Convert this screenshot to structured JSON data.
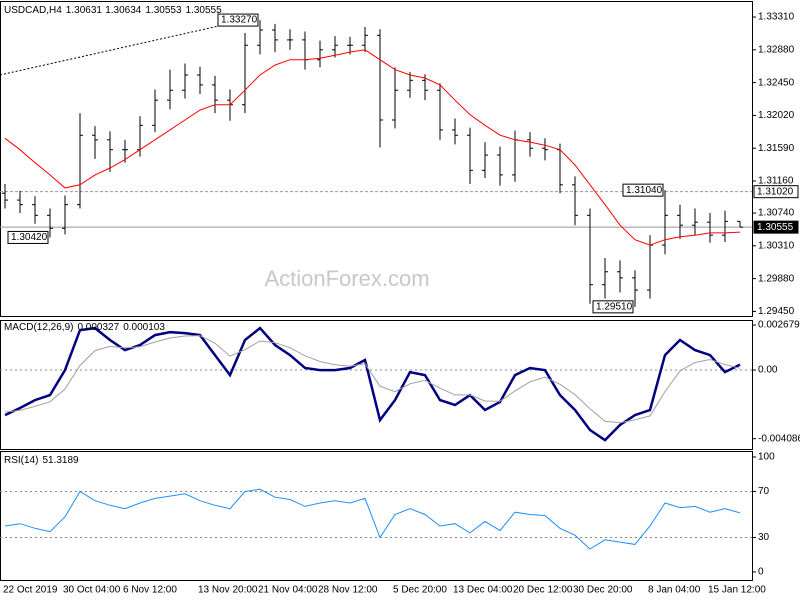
{
  "chart_data": [
    {
      "type": "ohlc",
      "title": "USDCAD,H4",
      "color": "#000000",
      "categories": [
        "22 Oct 2019",
        null,
        null,
        null,
        "30 Oct 04:00",
        null,
        null,
        null,
        "6 Nov 12:00",
        null,
        null,
        null,
        null,
        "13 Nov 20:00",
        null,
        null,
        null,
        "21 Nov 04:00",
        null,
        null,
        null,
        "28 Nov 12:00",
        null,
        null,
        null,
        null,
        "5 Dec 20:00",
        null,
        null,
        null,
        "13 Dec 04:00",
        null,
        null,
        null,
        "20 Dec 12:00",
        null,
        null,
        null,
        "30 Dec 20:00",
        null,
        null,
        null,
        null,
        "8 Jan 04:00",
        null,
        null,
        null,
        "15 Jan 12:00",
        null,
        null
      ],
      "open": [
        1.31,
        1.3091,
        1.3085,
        1.3071,
        1.3054,
        1.3085,
        1.3176,
        1.317,
        1.3157,
        1.3157,
        1.3189,
        1.3222,
        1.3235,
        1.3255,
        1.3242,
        1.3222,
        1.3216,
        1.3294,
        1.3314,
        1.3301,
        1.3301,
        1.3275,
        1.3288,
        1.3294,
        1.3294,
        1.3307,
        1.3196,
        1.3235,
        1.3248,
        1.3235,
        1.3183,
        1.3176,
        1.313,
        1.315,
        1.3124,
        1.317,
        1.3159,
        1.3157,
        1.3111,
        1.3071,
        1.298,
        1.2997,
        1.2989,
        1.2973,
        1.3032,
        1.3071,
        1.3058,
        1.3062,
        1.3045,
        1.30631
      ],
      "high": [
        1.3112,
        1.3103,
        1.3096,
        1.308,
        1.3097,
        1.3205,
        1.3188,
        1.3181,
        1.317,
        1.3201,
        1.3236,
        1.3262,
        1.327,
        1.3266,
        1.3254,
        1.3236,
        1.331,
        1.3327,
        1.3322,
        1.3315,
        1.3312,
        1.33,
        1.3306,
        1.3305,
        1.3318,
        1.3315,
        1.3265,
        1.3259,
        1.3256,
        1.3244,
        1.3198,
        1.3186,
        1.3167,
        1.3161,
        1.3182,
        1.318,
        1.3172,
        1.3165,
        1.3122,
        1.308,
        1.3015,
        1.3012,
        1.2999,
        1.3045,
        1.3104,
        1.3085,
        1.308,
        1.3074,
        1.3077,
        1.30634
      ],
      "low": [
        1.308,
        1.3074,
        1.306,
        1.3042,
        1.3046,
        1.308,
        1.3145,
        1.3128,
        1.314,
        1.3148,
        1.318,
        1.321,
        1.3224,
        1.323,
        1.3205,
        1.3195,
        1.3205,
        1.3282,
        1.3285,
        1.3288,
        1.3262,
        1.3265,
        1.3278,
        1.3282,
        1.3285,
        1.316,
        1.3185,
        1.3225,
        1.3222,
        1.317,
        1.3164,
        1.3112,
        1.312,
        1.311,
        1.3115,
        1.3148,
        1.3143,
        1.31,
        1.3058,
        1.2955,
        1.2962,
        1.297,
        1.2951,
        1.2962,
        1.302,
        1.304,
        1.3045,
        1.3035,
        1.3036,
        1.30553
      ],
      "close": [
        1.3091,
        1.3085,
        1.3071,
        1.3054,
        1.3085,
        1.3176,
        1.317,
        1.3157,
        1.3157,
        1.3189,
        1.3222,
        1.3235,
        1.3255,
        1.3242,
        1.3222,
        1.3216,
        1.3294,
        1.3314,
        1.3301,
        1.3301,
        1.3275,
        1.3288,
        1.3294,
        1.3294,
        1.3307,
        1.3196,
        1.3235,
        1.3248,
        1.3235,
        1.3183,
        1.3176,
        1.313,
        1.315,
        1.3124,
        1.317,
        1.3159,
        1.3157,
        1.3111,
        1.3071,
        1.298,
        1.2997,
        1.2989,
        1.2973,
        1.3032,
        1.3071,
        1.3058,
        1.3062,
        1.3045,
        1.30631,
        1.30555
      ],
      "ma_color": "#ff0000",
      "ma_values": [
        1.3172,
        1.3157,
        1.314,
        1.3124,
        1.3107,
        1.3111,
        1.3124,
        1.3133,
        1.3144,
        1.3157,
        1.317,
        1.3183,
        1.3196,
        1.3209,
        1.3216,
        1.3216,
        1.3235,
        1.3255,
        1.3268,
        1.3275,
        1.3275,
        1.3277,
        1.3281,
        1.3285,
        1.3288,
        1.3275,
        1.3262,
        1.3255,
        1.3251,
        1.3242,
        1.3222,
        1.3203,
        1.3189,
        1.3176,
        1.317,
        1.3167,
        1.3163,
        1.3157,
        1.3137,
        1.3111,
        1.3085,
        1.3058,
        1.3039,
        1.3032,
        1.3039,
        1.3043,
        1.3045,
        1.3048,
        1.3048,
        1.3049
      ],
      "ylim": [
        1.2939,
        1.3352
      ],
      "yticks": [
        {
          "value": 1.3331,
          "label": "1.33310"
        },
        {
          "value": 1.3288,
          "label": "1.32880"
        },
        {
          "value": 1.3245,
          "label": "1.32450"
        },
        {
          "value": 1.3202,
          "label": "1.32020"
        },
        {
          "value": 1.3159,
          "label": "1.31590"
        },
        {
          "value": 1.3116,
          "label": "1.31160"
        },
        {
          "value": 1.3074,
          "label": "1.30740"
        },
        {
          "value": 1.3031,
          "label": "1.30310"
        },
        {
          "value": 1.2988,
          "label": "1.29880"
        },
        {
          "value": 1.2945,
          "label": "1.29450"
        }
      ],
      "hlines": [
        {
          "value": 1.3102,
          "label": "1.31020"
        },
        {
          "value": 1.30555,
          "label": "1.30555"
        }
      ],
      "annotations": [
        {
          "value": 1.3327,
          "label": "1.33270"
        },
        {
          "value": 1.3042,
          "label": "1.30420"
        },
        {
          "value": 1.2951,
          "label": "1.29510"
        },
        {
          "value": 1.3104,
          "label": "1.31040"
        }
      ],
      "trendline": [
        1.3255,
        1.3327
      ],
      "watermark": "ActionForex.com"
    },
    {
      "type": "line",
      "title": "MACD(12,26,9)",
      "series": [
        {
          "color": "#000080",
          "values": [
            -0.00268,
            -0.00226,
            -0.00179,
            -0.00149,
            0,
            0.00238,
            0.0025,
            0.00179,
            0.00119,
            0.00149,
            0.00208,
            0.00226,
            0.0022,
            0.00208,
            0.00089,
            -0.0003,
            0.00179,
            0.0025,
            0.00149,
            0.00089,
            0.00012,
            0,
            0,
            0.00012,
            0.0006,
            -0.00298,
            -0.00179,
            -0.00012,
            -0.0003,
            -0.00179,
            -0.00208,
            -0.00149,
            -0.00238,
            -0.0019,
            -0.0003,
            0.00012,
            0,
            -0.00149,
            -0.00238,
            -0.00357,
            -0.00417,
            -0.00327,
            -0.00268,
            -0.00238,
            0.00089,
            0.00179,
            0.00119,
            0.00089,
            -0.00012,
            0.000327
          ]
        },
        {
          "color": "#a0a0a0",
          "values": [
            -0.0025,
            -0.0024,
            -0.00216,
            -0.00189,
            -0.00113,
            0.00027,
            0.00116,
            0.00141,
            0.00132,
            0.00139,
            0.00167,
            0.00191,
            0.00203,
            0.00205,
            0.00159,
            0.00083,
            0.00121,
            0.00173,
            0.00163,
            0.00133,
            0.00085,
            0.00051,
            0.00031,
            0.00023,
            0.00038,
            -0.00096,
            -0.00129,
            -0.00082,
            -0.00061,
            -0.00108,
            -0.00148,
            -0.00148,
            -0.00184,
            -0.00186,
            -0.00124,
            -0.0007,
            -0.00042,
            -0.00085,
            -0.00146,
            -0.0023,
            -0.00305,
            -0.00314,
            -0.00296,
            -0.00273,
            -0.00128,
            -5e-05,
            0.00045,
            0.00063,
            0.00033,
            0.000103
          ]
        }
      ],
      "ylim": [
        -0.0047,
        0.00298
      ],
      "yticks": [
        0.002679,
        {
          "value": 0,
          "label": "0.00"
        },
        -0.004086
      ],
      "levels": [
        0
      ]
    },
    {
      "type": "line",
      "title": "RSI(14)",
      "series": [
        {
          "color": "#1e90ff",
          "values": [
            40,
            42,
            38,
            35,
            48,
            70,
            62,
            58,
            55,
            60,
            64,
            66,
            68,
            62,
            58,
            55,
            70,
            72,
            65,
            63,
            57,
            60,
            62,
            60,
            64,
            30,
            50,
            55,
            50,
            40,
            42,
            34,
            44,
            36,
            52,
            50,
            49,
            38,
            32,
            20,
            28,
            26,
            24,
            40,
            60,
            56,
            57,
            52,
            55,
            51.3189
          ]
        }
      ],
      "ylim": [
        -7,
        105.2
      ],
      "yticks": [
        100,
        70,
        30,
        0
      ],
      "levels": [
        70,
        30
      ]
    }
  ]
}
